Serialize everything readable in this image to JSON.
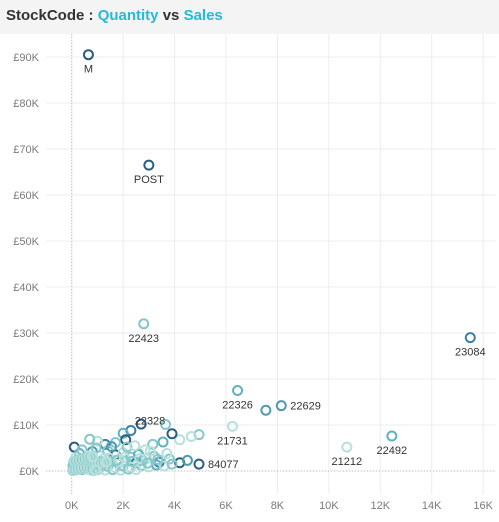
{
  "header": {
    "title_prefix": "StockCode : ",
    "title_x": "Quantity",
    "title_vs": " vs ",
    "title_y": "Sales"
  },
  "colors": {
    "accent": "#29b8d8",
    "grid": "#ececec",
    "baseline": "#c0c0c0"
  },
  "chart_data": {
    "type": "scatter",
    "title": "StockCode : Quantity vs Sales",
    "xlabel": "",
    "ylabel": "",
    "xlim": [
      -1000,
      16500
    ],
    "ylim": [
      -5000,
      95000
    ],
    "x_ticks": [
      0,
      2000,
      4000,
      6000,
      8000,
      10000,
      12000,
      14000,
      16000
    ],
    "x_tick_labels": [
      "0K",
      "2K",
      "4K",
      "6K",
      "8K",
      "10K",
      "12K",
      "14K",
      "16K"
    ],
    "y_ticks": [
      0,
      10000,
      20000,
      30000,
      40000,
      50000,
      60000,
      70000,
      80000,
      90000
    ],
    "y_tick_labels": [
      "£0K",
      "£10K",
      "£20K",
      "£30K",
      "£40K",
      "£50K",
      "£60K",
      "£70K",
      "£80K",
      "£90K"
    ],
    "grid": true,
    "labeled_points": [
      {
        "label": "M",
        "x": 650,
        "y": 90500,
        "color": "#2d5d7e",
        "label_pos": "below"
      },
      {
        "label": "POST",
        "x": 3000,
        "y": 66500,
        "color": "#2d5d7e",
        "label_pos": "below"
      },
      {
        "label": "22423",
        "x": 2800,
        "y": 32000,
        "color": "#86c7c9",
        "label_pos": "below"
      },
      {
        "label": "23084",
        "x": 15500,
        "y": 29000,
        "color": "#3c7fa4",
        "label_pos": "below"
      },
      {
        "label": "22326",
        "x": 6450,
        "y": 17500,
        "color": "#61b0be",
        "label_pos": "below"
      },
      {
        "label": "22629",
        "x": 8150,
        "y": 14200,
        "color": "#4e9bb2",
        "label_pos": "right"
      },
      {
        "label": "22328",
        "x": 3900,
        "y": 8100,
        "color": "#2d5d7e",
        "label_pos": "above"
      },
      {
        "label": "21731",
        "x": 6250,
        "y": 9700,
        "color": "#b6e0dc",
        "label_pos": "below"
      },
      {
        "label": "84077",
        "x": 4950,
        "y": 1500,
        "color": "#2d5d7e",
        "label_pos": "right"
      },
      {
        "label": "21212",
        "x": 10700,
        "y": 5200,
        "color": "#b6e0dc",
        "label_pos": "below"
      },
      {
        "label": "22492",
        "x": 12450,
        "y": 7600,
        "color": "#61b0be",
        "label_pos": "below"
      }
    ],
    "points": [
      {
        "x": 7550,
        "y": 13200,
        "color": "#4e9bb2"
      },
      {
        "x": 2700,
        "y": 10200,
        "color": "#2d5d7e"
      },
      {
        "x": 3650,
        "y": 10100,
        "color": "#86c7c9"
      },
      {
        "x": 4950,
        "y": 7900,
        "color": "#86c7c9"
      },
      {
        "x": 4650,
        "y": 7500,
        "color": "#b6e0dc"
      },
      {
        "x": 4200,
        "y": 6800,
        "color": "#b6e0dc"
      },
      {
        "x": 3550,
        "y": 6300,
        "color": "#61b0be"
      },
      {
        "x": 3150,
        "y": 5800,
        "color": "#86c7c9"
      },
      {
        "x": 2850,
        "y": 4600,
        "color": "#b6e0dc"
      },
      {
        "x": 4200,
        "y": 1800,
        "color": "#2d5d7e"
      },
      {
        "x": 4500,
        "y": 2300,
        "color": "#4e9bb2"
      },
      {
        "x": 3800,
        "y": 2600,
        "color": "#86c7c9"
      },
      {
        "x": 3400,
        "y": 1900,
        "color": "#3c7fa4"
      },
      {
        "x": 2300,
        "y": 8800,
        "color": "#3c7fa4"
      },
      {
        "x": 2000,
        "y": 8200,
        "color": "#61b0be"
      },
      {
        "x": 2100,
        "y": 6800,
        "color": "#2d5d7e"
      },
      {
        "x": 1700,
        "y": 6200,
        "color": "#86c7c9"
      },
      {
        "x": 1300,
        "y": 5800,
        "color": "#3c7fa4"
      },
      {
        "x": 1000,
        "y": 6500,
        "color": "#b6e0dc"
      },
      {
        "x": 700,
        "y": 6900,
        "color": "#86c7c9"
      },
      {
        "x": 100,
        "y": 5200,
        "color": "#2d5d7e"
      },
      {
        "x": 300,
        "y": 3800,
        "color": "#61b0be"
      },
      {
        "x": 500,
        "y": 2500,
        "color": "#86c7c9"
      },
      {
        "x": 800,
        "y": 4200,
        "color": "#4e9bb2"
      },
      {
        "x": 1100,
        "y": 3300,
        "color": "#b6e0dc"
      },
      {
        "x": 1400,
        "y": 4400,
        "color": "#86c7c9"
      },
      {
        "x": 1700,
        "y": 3500,
        "color": "#2d5d7e"
      },
      {
        "x": 2000,
        "y": 4000,
        "color": "#b6e0dc"
      },
      {
        "x": 2300,
        "y": 3000,
        "color": "#86c7c9"
      },
      {
        "x": 2600,
        "y": 3600,
        "color": "#61b0be"
      },
      {
        "x": 2900,
        "y": 2700,
        "color": "#b6e0dc"
      },
      {
        "x": 3200,
        "y": 3200,
        "color": "#86c7c9"
      },
      {
        "x": 2500,
        "y": 1800,
        "color": "#3c7fa4"
      },
      {
        "x": 2100,
        "y": 2200,
        "color": "#86c7c9"
      },
      {
        "x": 1800,
        "y": 1500,
        "color": "#b6e0dc"
      },
      {
        "x": 1500,
        "y": 2100,
        "color": "#86c7c9"
      },
      {
        "x": 1200,
        "y": 1400,
        "color": "#61b0be"
      },
      {
        "x": 900,
        "y": 1800,
        "color": "#b6e0dc"
      },
      {
        "x": 600,
        "y": 1200,
        "color": "#86c7c9"
      },
      {
        "x": 300,
        "y": 1600,
        "color": "#b6e0dc"
      },
      {
        "x": 200,
        "y": 700,
        "color": "#86c7c9"
      },
      {
        "x": 500,
        "y": 500,
        "color": "#b6e0dc"
      },
      {
        "x": 800,
        "y": 900,
        "color": "#86c7c9"
      },
      {
        "x": 1100,
        "y": 600,
        "color": "#b6e0dc"
      },
      {
        "x": 1400,
        "y": 1000,
        "color": "#86c7c9"
      },
      {
        "x": 1700,
        "y": 700,
        "color": "#b6e0dc"
      },
      {
        "x": 2000,
        "y": 1100,
        "color": "#86c7c9"
      },
      {
        "x": 2300,
        "y": 800,
        "color": "#b6e0dc"
      },
      {
        "x": 2700,
        "y": 1200,
        "color": "#86c7c9"
      },
      {
        "x": 3000,
        "y": 900,
        "color": "#b6e0dc"
      },
      {
        "x": 3300,
        "y": 1300,
        "color": "#61b0be"
      },
      {
        "x": 3600,
        "y": 1100,
        "color": "#b6e0dc"
      },
      {
        "x": 3900,
        "y": 1500,
        "color": "#86c7c9"
      },
      {
        "x": 100,
        "y": 200,
        "color": "#b6e0dc"
      },
      {
        "x": 400,
        "y": 300,
        "color": "#86c7c9"
      },
      {
        "x": 700,
        "y": 200,
        "color": "#b6e0dc"
      },
      {
        "x": 1000,
        "y": 300,
        "color": "#86c7c9"
      },
      {
        "x": 1300,
        "y": 200,
        "color": "#b6e0dc"
      },
      {
        "x": 1600,
        "y": 300,
        "color": "#86c7c9"
      },
      {
        "x": 1900,
        "y": 200,
        "color": "#b6e0dc"
      },
      {
        "x": 2200,
        "y": 400,
        "color": "#86c7c9"
      },
      {
        "x": 2500,
        "y": 300,
        "color": "#b6e0dc"
      },
      {
        "x": 150,
        "y": 2800,
        "color": "#b6e0dc"
      },
      {
        "x": 400,
        "y": 4600,
        "color": "#86c7c9"
      },
      {
        "x": 650,
        "y": 3300,
        "color": "#b6e0dc"
      },
      {
        "x": 950,
        "y": 5000,
        "color": "#86c7c9"
      },
      {
        "x": 1250,
        "y": 2700,
        "color": "#b6e0dc"
      },
      {
        "x": 1550,
        "y": 5300,
        "color": "#4e9bb2"
      },
      {
        "x": 1850,
        "y": 2600,
        "color": "#b6e0dc"
      },
      {
        "x": 2150,
        "y": 5200,
        "color": "#86c7c9"
      },
      {
        "x": 2450,
        "y": 5500,
        "color": "#b6e0dc"
      },
      {
        "x": 2750,
        "y": 2300,
        "color": "#86c7c9"
      },
      {
        "x": 3050,
        "y": 4300,
        "color": "#b6e0dc"
      },
      {
        "x": 3350,
        "y": 2500,
        "color": "#86c7c9"
      },
      {
        "x": 3700,
        "y": 3800,
        "color": "#b6e0dc"
      },
      {
        "x": 50,
        "y": 1100,
        "color": "#86c7c9"
      },
      {
        "x": 250,
        "y": 2200,
        "color": "#b6e0dc"
      },
      {
        "x": 550,
        "y": 1700,
        "color": "#86c7c9"
      },
      {
        "x": 850,
        "y": 2400,
        "color": "#b6e0dc"
      },
      {
        "x": 1150,
        "y": 2000,
        "color": "#86c7c9"
      },
      {
        "x": 1450,
        "y": 2800,
        "color": "#b6e0dc"
      },
      {
        "x": 1750,
        "y": 2300,
        "color": "#86c7c9"
      },
      {
        "x": 2050,
        "y": 2900,
        "color": "#b6e0dc"
      },
      {
        "x": 2350,
        "y": 2100,
        "color": "#86c7c9"
      },
      {
        "x": 2650,
        "y": 2700,
        "color": "#b6e0dc"
      },
      {
        "x": 2950,
        "y": 1700,
        "color": "#86c7c9"
      }
    ]
  }
}
